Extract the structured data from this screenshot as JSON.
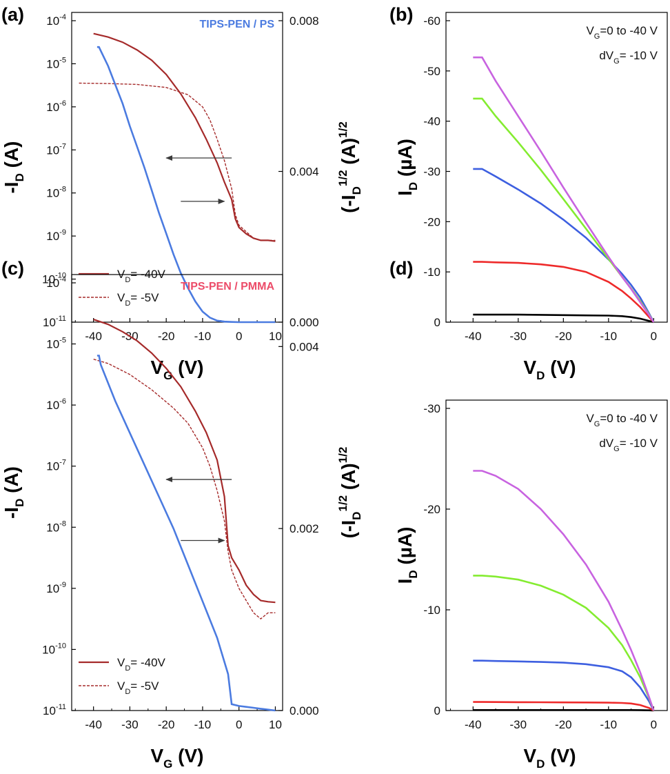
{
  "colors": {
    "transfer_dark": "#a52a2a",
    "transfer_blue": "#4b7be0",
    "ps_label": "#4b7be0",
    "pmma_label": "#ec4b68",
    "vg0": "#000000",
    "vg10": "#ee2a2a",
    "vg20": "#3d5fe0",
    "vg30": "#84ec30",
    "vg40": "#c863e0"
  },
  "chart_data": [
    {
      "panel": "(a)",
      "type": "line",
      "title": "TIPS-PEN / PS",
      "xlabel": {
        "main": "V",
        "sub": "G",
        "unit": " (V)"
      },
      "ylabel": {
        "main": "-I",
        "sub": "D",
        "unit": " (A)"
      },
      "y2label": {
        "pre": "(-I",
        "sub": "D",
        "sup": "1/2",
        "mid": " (A)",
        "sup2": "1/2"
      },
      "xlim": [
        -46,
        12
      ],
      "xticks": [
        "-40",
        "-30",
        "-20",
        "-10",
        "0",
        "10"
      ],
      "y_scale": "log",
      "ylim_exp": [
        -11,
        -4
      ],
      "yticks": [
        "10",
        "10",
        "10",
        "10",
        "10",
        "10",
        "10",
        "10"
      ],
      "ytick_exps": [
        "-11",
        "-10",
        "-9",
        "-8",
        "-7",
        "-6",
        "-5",
        "-4"
      ],
      "y2lim": [
        0,
        0.008
      ],
      "y2ticks": [
        "0.000",
        "0.004",
        "0.008"
      ],
      "legend": [
        {
          "label_pre": "V",
          "label_sub": "D",
          "label_post": "= -40V",
          "style": "solid"
        },
        {
          "label_pre": "V",
          "label_sub": "D",
          "label_post": "= -5V",
          "style": "dashed"
        }
      ],
      "legend_position": "bottom-left",
      "arrows": [
        "left (log-scale curve)",
        "right (square-root curve)"
      ],
      "series": [
        {
          "axis": "log",
          "style": "solid",
          "x": [
            -40,
            -36,
            -32,
            -28,
            -24,
            -20,
            -16,
            -12,
            -9,
            -6,
            -4,
            -2,
            -1,
            0,
            2,
            4,
            6,
            8,
            10
          ],
          "y_log": [
            -4.3,
            -4.38,
            -4.5,
            -4.68,
            -4.92,
            -5.25,
            -5.7,
            -6.25,
            -6.75,
            -7.3,
            -7.75,
            -8.15,
            -8.6,
            -8.8,
            -8.95,
            -9.05,
            -9.1,
            -9.1,
            -9.12
          ]
        },
        {
          "axis": "log",
          "style": "dashed",
          "x": [
            -44,
            -36,
            -28,
            -20,
            -14,
            -10,
            -8,
            -6,
            -4,
            -2,
            -1,
            0,
            2,
            4,
            6,
            8,
            10
          ],
          "y_log": [
            -5.45,
            -5.46,
            -5.48,
            -5.55,
            -5.72,
            -6.0,
            -6.3,
            -6.75,
            -7.25,
            -7.9,
            -8.5,
            -8.75,
            -8.9,
            -9.05,
            -9.1,
            -9.1,
            -9.1
          ]
        },
        {
          "axis": "sqrt",
          "style": "solid",
          "x": [
            -39,
            -38.5,
            -38,
            -36,
            -34,
            -32,
            -30,
            -28,
            -26,
            -24,
            -22,
            -20,
            -18,
            -16,
            -14,
            -12,
            -10,
            -8,
            -6,
            -4,
            -2,
            0,
            2,
            4,
            6,
            8,
            10
          ],
          "y": [
            0.0073,
            0.0073,
            0.0072,
            0.0068,
            0.0063,
            0.0058,
            0.0052,
            0.00465,
            0.0041,
            0.0035,
            0.0029,
            0.00235,
            0.0018,
            0.0013,
            0.0009,
            0.00055,
            0.00028,
            0.00012,
            4e-05,
            1.5e-05,
            5e-06,
            0.0,
            0.0,
            0.0,
            0.0,
            0.0,
            0.0
          ]
        }
      ]
    },
    {
      "panel": "(b)",
      "type": "line",
      "xlabel": {
        "main": "V",
        "sub": "D",
        "unit": " (V)"
      },
      "ylabel": {
        "main": "I",
        "sub": "D",
        "unit": " (µA)"
      },
      "xlim": [
        -46,
        3
      ],
      "xticks": [
        "-40",
        "-30",
        "-20",
        "-10",
        "0"
      ],
      "ylim": [
        0,
        -60
      ],
      "yticks": [
        "0",
        "-10",
        "-20",
        "-30",
        "-40",
        "-50",
        "-60"
      ],
      "annotation": [
        {
          "pre": "V",
          "sub": "G",
          "post": "=0 to -40 V"
        },
        {
          "pre": "dV",
          "sub": "G",
          "post": "= -10 V"
        }
      ],
      "x": [
        -40,
        -38,
        -35,
        -30,
        -25,
        -20,
        -15,
        -10,
        -7,
        -5,
        -3,
        -1,
        0
      ],
      "series": [
        {
          "color_key": "vg0",
          "values": [
            -1.5,
            -1.5,
            -1.5,
            -1.5,
            -1.45,
            -1.4,
            -1.35,
            -1.3,
            -1.2,
            -1.0,
            -0.7,
            -0.25,
            0
          ]
        },
        {
          "color_key": "vg10",
          "values": [
            -12,
            -12,
            -11.9,
            -11.8,
            -11.5,
            -11.0,
            -10.0,
            -8.0,
            -6.2,
            -4.7,
            -3.0,
            -1.0,
            0
          ]
        },
        {
          "color_key": "vg20",
          "values": [
            -30.5,
            -30.5,
            -29,
            -26.4,
            -23.6,
            -20.4,
            -16.8,
            -12.5,
            -9.6,
            -7.4,
            -4.9,
            -1.7,
            0
          ]
        },
        {
          "color_key": "vg30",
          "values": [
            -44.5,
            -44.5,
            -41,
            -35.8,
            -30.3,
            -24.5,
            -18.6,
            -12.6,
            -9.0,
            -6.7,
            -4.2,
            -1.5,
            0
          ]
        },
        {
          "color_key": "vg40",
          "values": [
            -52.7,
            -52.7,
            -48,
            -41,
            -34,
            -26.8,
            -19.8,
            -13.0,
            -9.0,
            -6.6,
            -4.0,
            -1.4,
            0
          ]
        }
      ]
    },
    {
      "panel": "(c)",
      "type": "line",
      "title": "TIPS-PEN / PMMA",
      "xlabel": {
        "main": "V",
        "sub": "G",
        "unit": " (V)"
      },
      "ylabel": {
        "main": "-I",
        "sub": "D",
        "unit": " (A)"
      },
      "y2label": {
        "pre": "(-I",
        "sub": "D",
        "sup": "1/2",
        "mid": " (A)",
        "sup2": "1/2"
      },
      "xlim": [
        -46,
        12
      ],
      "xticks": [
        "-40",
        "-30",
        "-20",
        "-10",
        "0",
        "10"
      ],
      "y_scale": "log",
      "ylim_exp": [
        -11,
        -4
      ],
      "yticks": [
        "10",
        "10",
        "10",
        "10",
        "10",
        "10",
        "10",
        "10"
      ],
      "ytick_exps": [
        "-11",
        "-10",
        "-9",
        "-8",
        "-7",
        "-6",
        "-5",
        "-4"
      ],
      "y2lim": [
        0,
        0.0047
      ],
      "y2ticks": [
        "0.000",
        "0.002",
        "0.004"
      ],
      "legend": [
        {
          "label_pre": "V",
          "label_sub": "D",
          "label_post": "= -40V",
          "style": "solid"
        },
        {
          "label_pre": "V",
          "label_sub": "D",
          "label_post": "= -5V",
          "style": "dashed"
        }
      ],
      "legend_position": "bottom-left",
      "arrows": [
        "left (log-scale curve)",
        "right (square-root curve)"
      ],
      "series": [
        {
          "axis": "log",
          "style": "solid",
          "x": [
            -40,
            -36,
            -32,
            -28,
            -24,
            -20,
            -16,
            -12,
            -9,
            -6,
            -4,
            -3,
            -2,
            0,
            2,
            4,
            6,
            8,
            10
          ],
          "y_log": [
            -4.6,
            -4.68,
            -4.8,
            -4.95,
            -5.15,
            -5.4,
            -5.7,
            -6.1,
            -6.45,
            -6.9,
            -7.5,
            -8.3,
            -8.5,
            -8.7,
            -8.95,
            -9.1,
            -9.2,
            -9.22,
            -9.23
          ]
        },
        {
          "axis": "log",
          "style": "dashed",
          "x": [
            -40,
            -36,
            -30,
            -24,
            -18,
            -14,
            -10,
            -8,
            -6,
            -4,
            -3,
            -2,
            0,
            2,
            4,
            6,
            8,
            10
          ],
          "y_log": [
            -5.25,
            -5.32,
            -5.5,
            -5.75,
            -6.05,
            -6.3,
            -6.7,
            -7.0,
            -7.4,
            -7.9,
            -8.4,
            -8.7,
            -9.0,
            -9.2,
            -9.4,
            -9.5,
            -9.4,
            -9.4
          ]
        },
        {
          "axis": "sqrt",
          "style": "solid",
          "x": [
            -39,
            -38.5,
            -38,
            -34,
            -30,
            -26,
            -22,
            -18,
            -14,
            -10,
            -6,
            -3,
            -2,
            0,
            2,
            4,
            6,
            8,
            10
          ],
          "y": [
            0.0039,
            0.0039,
            0.0038,
            0.0034,
            0.00305,
            0.0027,
            0.00235,
            0.002,
            0.0016,
            0.0012,
            0.0008,
            0.0004,
            7e-05,
            5e-05,
            4e-05,
            3e-05,
            2e-05,
            1e-05,
            0.0
          ]
        }
      ]
    },
    {
      "panel": "(d)",
      "type": "line",
      "xlabel": {
        "main": "V",
        "sub": "D",
        "unit": " (V)"
      },
      "ylabel": {
        "main": "I",
        "sub": "D",
        "unit": " (µA)"
      },
      "xlim": [
        -46,
        3
      ],
      "xticks": [
        "-40",
        "-30",
        "-20",
        "-10",
        "0"
      ],
      "ylim": [
        0,
        -30
      ],
      "yticks": [
        "0",
        "-10",
        "-20",
        "-30"
      ],
      "annotation": [
        {
          "pre": "V",
          "sub": "G",
          "post": "=0 to -40 V"
        },
        {
          "pre": "dV",
          "sub": "G",
          "post": "= -10 V"
        }
      ],
      "x": [
        -40,
        -38,
        -35,
        -30,
        -25,
        -20,
        -15,
        -10,
        -7,
        -5,
        -3,
        -1,
        0
      ],
      "series": [
        {
          "color_key": "vg0",
          "values": [
            -0.05,
            -0.05,
            -0.05,
            -0.05,
            -0.05,
            -0.05,
            -0.05,
            -0.05,
            -0.05,
            -0.05,
            -0.04,
            -0.02,
            0
          ]
        },
        {
          "color_key": "vg10",
          "values": [
            -0.85,
            -0.85,
            -0.84,
            -0.83,
            -0.82,
            -0.81,
            -0.8,
            -0.78,
            -0.75,
            -0.7,
            -0.55,
            -0.25,
            0
          ]
        },
        {
          "color_key": "vg20",
          "values": [
            -4.95,
            -4.95,
            -4.92,
            -4.88,
            -4.82,
            -4.75,
            -4.6,
            -4.3,
            -3.9,
            -3.3,
            -2.3,
            -0.9,
            0
          ]
        },
        {
          "color_key": "vg30",
          "values": [
            -13.4,
            -13.4,
            -13.3,
            -13.0,
            -12.4,
            -11.5,
            -10.2,
            -8.2,
            -6.5,
            -5.0,
            -3.3,
            -1.2,
            0
          ]
        },
        {
          "color_key": "vg40",
          "values": [
            -23.8,
            -23.8,
            -23.3,
            -22.0,
            -20.0,
            -17.5,
            -14.5,
            -10.8,
            -8.0,
            -6.0,
            -3.8,
            -1.3,
            0
          ]
        }
      ]
    }
  ]
}
